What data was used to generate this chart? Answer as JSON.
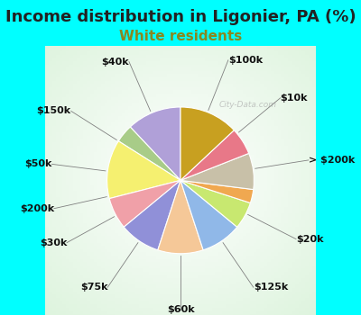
{
  "title": "Income distribution in Ligonier, PA (%)",
  "subtitle": "White residents",
  "title_fontsize": 13,
  "subtitle_fontsize": 11,
  "background_color": "#00FFFF",
  "labels": [
    "$100k",
    "$10k",
    "> $200k",
    "$20k",
    "$125k",
    "$60k",
    "$75k",
    "$30k",
    "$200k",
    "$50k",
    "$150k",
    "$40k"
  ],
  "values": [
    12,
    4,
    13,
    7,
    9,
    10,
    9,
    6,
    3,
    8,
    6,
    13
  ],
  "colors": [
    "#b0a0d8",
    "#a8cc88",
    "#f5f070",
    "#f0a0a8",
    "#9090d8",
    "#f5c898",
    "#90b8e8",
    "#c8e870",
    "#f0a850",
    "#c8c0a8",
    "#e87888",
    "#c8a020"
  ],
  "startangle": 90,
  "label_fontsize": 8
}
